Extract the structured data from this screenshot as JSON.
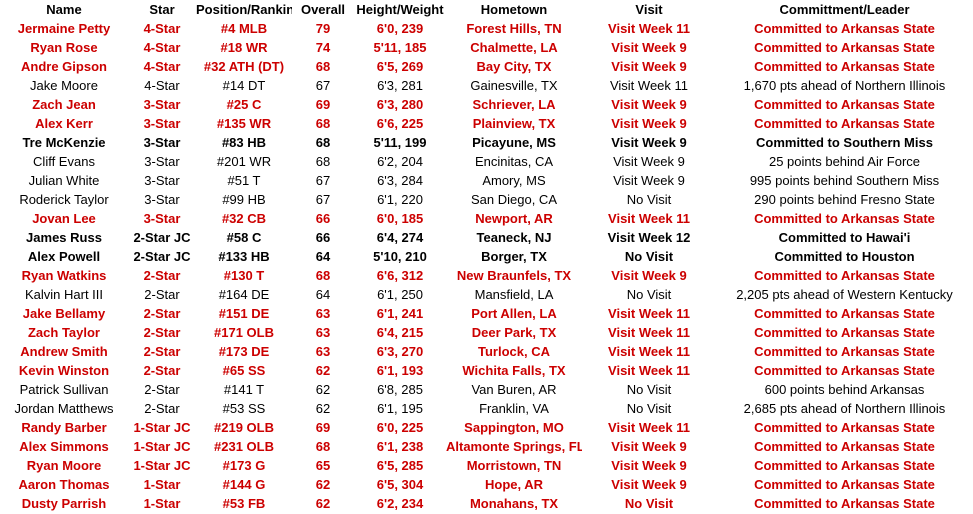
{
  "colors": {
    "committed_red": "#cc0000",
    "text_black": "#000000",
    "background": "#ffffff"
  },
  "table": {
    "columns": [
      {
        "key": "name",
        "label": "Name"
      },
      {
        "key": "star",
        "label": "Star"
      },
      {
        "key": "position",
        "label": "Position/Ranking"
      },
      {
        "key": "overall",
        "label": "Overall"
      },
      {
        "key": "height_weight",
        "label": "Height/Weight"
      },
      {
        "key": "hometown",
        "label": "Hometown"
      },
      {
        "key": "visit",
        "label": "Visit"
      },
      {
        "key": "commitment",
        "label": "Committment/Leader"
      }
    ],
    "rows": [
      {
        "name": "Jermaine Petty",
        "star": "4-Star",
        "position": "#4 MLB",
        "overall": "79",
        "height_weight": "6'0, 239",
        "hometown": "Forest Hills, TN",
        "visit": "Visit Week 11",
        "commitment": "Committed to Arkansas State",
        "row_style": "red"
      },
      {
        "name": "Ryan Rose",
        "star": "4-Star",
        "position": "#18 WR",
        "overall": "74",
        "height_weight": "5'11, 185",
        "hometown": "Chalmette, LA",
        "visit": "Visit Week 9",
        "commitment": "Committed to Arkansas State",
        "row_style": "red"
      },
      {
        "name": "Andre Gipson",
        "star": "4-Star",
        "position": "#32 ATH (DT)",
        "overall": "68",
        "height_weight": "6'5, 269",
        "hometown": "Bay City, TX",
        "visit": "Visit Week 9",
        "commitment": "Committed to Arkansas State",
        "row_style": "red"
      },
      {
        "name": "Jake Moore",
        "star": "4-Star",
        "position": "#14 DT",
        "overall": "67",
        "height_weight": "6'3, 281",
        "hometown": "Gainesville, TX",
        "visit": "Visit Week 11",
        "commitment": "1,670 pts ahead of Northern Illinois",
        "row_style": "plain"
      },
      {
        "name": "Zach Jean",
        "star": "3-Star",
        "position": "#25 C",
        "overall": "69",
        "height_weight": "6'3, 280",
        "hometown": "Schriever, LA",
        "visit": "Visit Week 9",
        "commitment": "Committed to Arkansas State",
        "row_style": "red"
      },
      {
        "name": "Alex Kerr",
        "star": "3-Star",
        "position": "#135 WR",
        "overall": "68",
        "height_weight": "6'6, 225",
        "hometown": "Plainview, TX",
        "visit": "Visit Week 9",
        "commitment": "Committed to Arkansas State",
        "row_style": "red"
      },
      {
        "name": "Tre McKenzie",
        "star": "3-Star",
        "position": "#83 HB",
        "overall": "68",
        "height_weight": "5'11, 199",
        "hometown": "Picayune, MS",
        "visit": "Visit Week 9",
        "commitment": "Committed to Southern Miss",
        "row_style": "bold"
      },
      {
        "name": "Cliff Evans",
        "star": "3-Star",
        "position": "#201 WR",
        "overall": "68",
        "height_weight": "6'2, 204",
        "hometown": "Encinitas, CA",
        "visit": "Visit Week 9",
        "commitment": "25 points behind Air Force",
        "row_style": "plain"
      },
      {
        "name": "Julian White",
        "star": "3-Star",
        "position": "#51 T",
        "overall": "67",
        "height_weight": "6'3, 284",
        "hometown": "Amory, MS",
        "visit": "Visit Week 9",
        "commitment": "995 points behind Southern Miss",
        "row_style": "plain"
      },
      {
        "name": "Roderick Taylor",
        "star": "3-Star",
        "position": "#99 HB",
        "overall": "67",
        "height_weight": "6'1, 220",
        "hometown": "San Diego, CA",
        "visit": "No Visit",
        "commitment": "290 points behind Fresno State",
        "row_style": "plain"
      },
      {
        "name": "Jovan Lee",
        "star": "3-Star",
        "position": "#32 CB",
        "overall": "66",
        "height_weight": "6'0, 185",
        "hometown": "Newport, AR",
        "visit": "Visit Week 11",
        "commitment": "Committed to Arkansas State",
        "row_style": "red"
      },
      {
        "name": "James Russ",
        "star": "2-Star JC",
        "position": "#58 C",
        "overall": "66",
        "height_weight": "6'4, 274",
        "hometown": "Teaneck, NJ",
        "visit": "Visit Week 12",
        "commitment": "Committed to Hawai'i",
        "row_style": "bold"
      },
      {
        "name": "Alex Powell",
        "star": "2-Star JC",
        "position": "#133 HB",
        "overall": "64",
        "height_weight": "5'10, 210",
        "hometown": "Borger, TX",
        "visit": "No Visit",
        "commitment": "Committed to Houston",
        "row_style": "bold"
      },
      {
        "name": "Ryan Watkins",
        "star": "2-Star",
        "position": "#130 T",
        "overall": "68",
        "height_weight": "6'6, 312",
        "hometown": "New Braunfels, TX",
        "visit": "Visit Week 9",
        "commitment": "Committed to Arkansas State",
        "row_style": "red"
      },
      {
        "name": "Kalvin Hart III",
        "star": "2-Star",
        "position": "#164 DE",
        "overall": "64",
        "height_weight": "6'1, 250",
        "hometown": "Mansfield, LA",
        "visit": "No Visit",
        "commitment": "2,205 pts ahead of Western Kentucky",
        "row_style": "plain"
      },
      {
        "name": "Jake Bellamy",
        "star": "2-Star",
        "position": "#151 DE",
        "overall": "63",
        "height_weight": "6'1, 241",
        "hometown": "Port Allen, LA",
        "visit": "Visit Week 11",
        "commitment": "Committed to Arkansas State",
        "row_style": "red"
      },
      {
        "name": "Zach Taylor",
        "star": "2-Star",
        "position": "#171 OLB",
        "overall": "63",
        "height_weight": "6'4, 215",
        "hometown": "Deer Park, TX",
        "visit": "Visit Week 11",
        "commitment": "Committed to Arkansas State",
        "row_style": "red"
      },
      {
        "name": "Andrew Smith",
        "star": "2-Star",
        "position": "#173 DE",
        "overall": "63",
        "height_weight": "6'3, 270",
        "hometown": "Turlock, CA",
        "visit": "Visit Week 11",
        "commitment": "Committed to Arkansas State",
        "row_style": "red"
      },
      {
        "name": "Kevin Winston",
        "star": "2-Star",
        "position": "#65 SS",
        "overall": "62",
        "height_weight": "6'1, 193",
        "hometown": "Wichita Falls, TX",
        "visit": "Visit Week 11",
        "commitment": "Committed to Arkansas State",
        "row_style": "red"
      },
      {
        "name": "Patrick Sullivan",
        "star": "2-Star",
        "position": "#141 T",
        "overall": "62",
        "height_weight": "6'8, 285",
        "hometown": "Van Buren, AR",
        "visit": "No Visit",
        "commitment": "600 points behind Arkansas",
        "row_style": "plain"
      },
      {
        "name": "Jordan Matthews",
        "star": "2-Star",
        "position": "#53 SS",
        "overall": "62",
        "height_weight": "6'1, 195",
        "hometown": "Franklin, VA",
        "visit": "No Visit",
        "commitment": "2,685 pts ahead of Northern Illinois",
        "row_style": "plain"
      },
      {
        "name": "Randy Barber",
        "star": "1-Star JC",
        "position": "#219 OLB",
        "overall": "69",
        "height_weight": "6'0, 225",
        "hometown": "Sappington, MO",
        "visit": "Visit Week 11",
        "commitment": "Committed to Arkansas State",
        "row_style": "red"
      },
      {
        "name": "Alex Simmons",
        "star": "1-Star JC",
        "position": "#231 OLB",
        "overall": "68",
        "height_weight": "6'1, 238",
        "hometown": "Altamonte Springs, FL",
        "visit": "Visit Week 9",
        "commitment": "Committed to Arkansas State",
        "row_style": "red"
      },
      {
        "name": "Ryan Moore",
        "star": "1-Star JC",
        "position": "#173 G",
        "overall": "65",
        "height_weight": "6'5, 285",
        "hometown": "Morristown, TN",
        "visit": "Visit Week 9",
        "commitment": "Committed to Arkansas State",
        "row_style": "red"
      },
      {
        "name": "Aaron Thomas",
        "star": "1-Star",
        "position": "#144 G",
        "overall": "62",
        "height_weight": "6'5, 304",
        "hometown": "Hope, AR",
        "visit": "Visit Week 9",
        "commitment": "Committed to Arkansas State",
        "row_style": "red"
      },
      {
        "name": "Dusty Parrish",
        "star": "1-Star",
        "position": "#53 FB",
        "overall": "62",
        "height_weight": "6'2, 234",
        "hometown": "Monahans, TX",
        "visit": "No Visit",
        "commitment": "Committed to Arkansas State",
        "row_style": "red"
      }
    ]
  }
}
